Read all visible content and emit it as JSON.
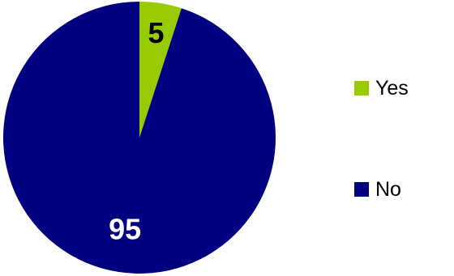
{
  "chart_data": {
    "type": "pie",
    "slices": [
      {
        "label": "Yes",
        "value": 5,
        "color": "#99cc00"
      },
      {
        "label": "No",
        "value": 95,
        "color": "#000080"
      }
    ],
    "data_labels": [
      "5",
      "95"
    ],
    "legend": {
      "position": "right",
      "entries": [
        "Yes",
        "No"
      ]
    },
    "title": ""
  }
}
